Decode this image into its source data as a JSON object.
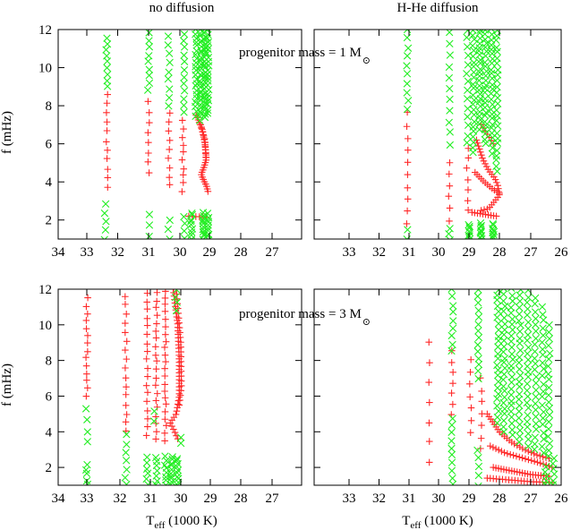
{
  "colors": {
    "stable": "#ff2a2a",
    "unstable": "#22ee22",
    "axis": "#000000"
  },
  "panel_titles": [
    "no diffusion",
    "H-He diffusion"
  ],
  "ylabel": "f (mHz)",
  "xlabel": {
    "main": "T",
    "sub": "eff",
    "rest": " (1000 K)"
  },
  "annotations": {
    "top": {
      "text": "progenitor mass = 1  M",
      "symbol": "⊙"
    },
    "bottom": {
      "text": "progenitor mass = 3  M",
      "symbol": "⊙"
    }
  },
  "chart_data": [
    {
      "type": "scatter",
      "panel": "top-left",
      "title": "no diffusion",
      "xlim": [
        34,
        26
      ],
      "ylim": [
        1,
        12
      ],
      "xticks": [
        34,
        33,
        32,
        31,
        30,
        29,
        28,
        27
      ],
      "yticks": [
        2,
        4,
        6,
        8,
        10,
        12
      ],
      "series": [
        {
          "marker": "plus",
          "columns": [
            {
              "x": 32.35,
              "ymin": 3.7,
              "ymax": 8.6,
              "n": 11
            },
            {
              "x": 31.0,
              "ymin": 4.5,
              "ymax": 8.2,
              "n": 8
            },
            {
              "x": 30.35,
              "ymin": 3.8,
              "ymax": 7.6,
              "n": 9
            },
            {
              "x": 29.9,
              "ymin": 3.5,
              "ymax": 7.2,
              "n": 10
            }
          ],
          "curves": [
            {
              "points": [
                [
                  29.45,
                  7.5
                ],
                [
                  29.25,
                  6.8
                ],
                [
                  29.15,
                  6.0
                ],
                [
                  29.1,
                  5.2
                ],
                [
                  29.2,
                  4.7
                ],
                [
                  29.28,
                  4.4
                ],
                [
                  29.2,
                  4.1
                ],
                [
                  29.1,
                  3.8
                ],
                [
                  29.05,
                  3.5
                ]
              ],
              "n": 32
            },
            {
              "points": [
                [
                  29.3,
                  7.0
                ],
                [
                  29.15,
                  6.2
                ],
                [
                  29.12,
                  5.3
                ]
              ],
              "n": 10
            },
            {
              "points": [
                [
                  29.7,
                  2.2
                ],
                [
                  29.1,
                  2.15
                ]
              ],
              "n": 6
            }
          ]
        },
        {
          "marker": "x",
          "columns": [
            {
              "x": 32.35,
              "ymin": 9.0,
              "ymax": 11.6,
              "n": 9
            },
            {
              "x": 32.4,
              "ymin": 1.0,
              "ymax": 2.8,
              "n": 5
            },
            {
              "x": 31.0,
              "ymin": 8.8,
              "ymax": 11.8,
              "n": 9
            },
            {
              "x": 31.0,
              "ymin": 1.1,
              "ymax": 2.3,
              "n": 3
            },
            {
              "x": 30.35,
              "ymin": 8.0,
              "ymax": 11.6,
              "n": 9
            },
            {
              "x": 30.35,
              "ymin": 1.0,
              "ymax": 2.0,
              "n": 3
            },
            {
              "x": 29.85,
              "ymin": 7.6,
              "ymax": 11.8,
              "n": 12
            },
            {
              "x": 29.85,
              "ymin": 1.0,
              "ymax": 2.2,
              "n": 4
            },
            {
              "x": 29.45,
              "ymin": 7.5,
              "ymax": 12.0,
              "n": 22
            },
            {
              "x": 29.3,
              "ymin": 7.2,
              "ymax": 12.0,
              "n": 28
            },
            {
              "x": 29.15,
              "ymin": 7.4,
              "ymax": 12.0,
              "n": 26
            },
            {
              "x": 29.05,
              "ymin": 7.6,
              "ymax": 12.0,
              "n": 22
            },
            {
              "x": 29.6,
              "ymin": 1.0,
              "ymax": 2.4,
              "n": 9
            },
            {
              "x": 29.2,
              "ymin": 1.0,
              "ymax": 2.4,
              "n": 12
            },
            {
              "x": 29.05,
              "ymin": 1.0,
              "ymax": 2.3,
              "n": 10
            }
          ]
        }
      ]
    },
    {
      "type": "scatter",
      "panel": "top-right",
      "title": "H-He diffusion",
      "xlim": [
        34,
        26
      ],
      "ylim": [
        1,
        12
      ],
      "xticks": [
        33,
        32,
        31,
        30,
        29,
        28,
        27,
        26
      ],
      "yticks": [
        2,
        4,
        6,
        8,
        10,
        12
      ],
      "series": [
        {
          "marker": "plus",
          "columns": [
            {
              "x": 31.05,
              "ymin": 1.8,
              "ymax": 7.6,
              "n": 10
            },
            {
              "x": 29.65,
              "ymin": 2.0,
              "ymax": 5.0,
              "n": 6
            },
            {
              "x": 29.05,
              "ymin": 2.5,
              "ymax": 5.8,
              "n": 7
            }
          ],
          "curves": [
            {
              "points": [
                [
                  28.75,
                  6.2
                ],
                [
                  28.55,
                  5.2
                ],
                [
                  28.35,
                  4.6
                ],
                [
                  28.15,
                  4.2
                ],
                [
                  28.05,
                  3.8
                ],
                [
                  28.0,
                  3.3
                ],
                [
                  28.15,
                  3.0
                ],
                [
                  28.35,
                  2.6
                ],
                [
                  28.6,
                  2.5
                ]
              ],
              "n": 28
            },
            {
              "points": [
                [
                  28.8,
                  4.5
                ],
                [
                  28.5,
                  4.0
                ],
                [
                  28.2,
                  3.6
                ],
                [
                  28.0,
                  3.4
                ]
              ],
              "n": 12
            },
            {
              "points": [
                [
                  28.9,
                  2.4
                ],
                [
                  28.5,
                  2.3
                ],
                [
                  28.1,
                  2.2
                ]
              ],
              "n": 10
            },
            {
              "points": [
                [
                  28.6,
                  7.0
                ],
                [
                  28.4,
                  6.5
                ],
                [
                  28.2,
                  6.0
                ]
              ],
              "n": 7
            }
          ]
        },
        {
          "marker": "x",
          "columns": [
            {
              "x": 31.05,
              "ymin": 7.8,
              "ymax": 12.0,
              "n": 10
            },
            {
              "x": 31.05,
              "ymin": 1.0,
              "ymax": 1.5,
              "n": 2
            },
            {
              "x": 29.65,
              "ymin": 6.0,
              "ymax": 11.8,
              "n": 11
            },
            {
              "x": 29.65,
              "ymin": 1.0,
              "ymax": 1.6,
              "n": 3
            },
            {
              "x": 29.05,
              "ymin": 6.0,
              "ymax": 12.0,
              "n": 14
            },
            {
              "x": 28.85,
              "ymin": 5.5,
              "ymax": 12.0,
              "n": 24
            },
            {
              "x": 28.65,
              "ymin": 6.8,
              "ymax": 12.0,
              "n": 24
            },
            {
              "x": 28.45,
              "ymin": 6.0,
              "ymax": 12.0,
              "n": 26
            },
            {
              "x": 28.25,
              "ymin": 5.5,
              "ymax": 12.0,
              "n": 26
            },
            {
              "x": 28.08,
              "ymin": 4.5,
              "ymax": 12.0,
              "n": 26
            },
            {
              "x": 29.0,
              "ymin": 1.0,
              "ymax": 1.8,
              "n": 8
            },
            {
              "x": 28.6,
              "ymin": 1.0,
              "ymax": 1.8,
              "n": 9
            },
            {
              "x": 28.2,
              "ymin": 1.0,
              "ymax": 1.8,
              "n": 9
            }
          ]
        }
      ]
    },
    {
      "type": "scatter",
      "panel": "bottom-left",
      "title": "",
      "xlim": [
        34,
        26
      ],
      "ylim": [
        1,
        12
      ],
      "xticks": [
        34,
        33,
        32,
        31,
        30,
        29,
        28,
        27
      ],
      "yticks": [
        2,
        4,
        6,
        8,
        10,
        12
      ],
      "series": [
        {
          "marker": "plus",
          "columns": [
            {
              "x": 33.0,
              "ymin": 6.0,
              "ymax": 11.5,
              "n": 14
            },
            {
              "x": 31.8,
              "ymin": 4.0,
              "ymax": 11.6,
              "n": 16
            },
            {
              "x": 31.1,
              "ymin": 3.8,
              "ymax": 11.8,
              "n": 18
            },
            {
              "x": 30.8,
              "ymin": 3.6,
              "ymax": 11.8,
              "n": 20
            },
            {
              "x": 30.5,
              "ymin": 3.5,
              "ymax": 11.9,
              "n": 22
            }
          ],
          "curves": [
            {
              "points": [
                [
                  30.25,
                  12.0
                ],
                [
                  30.1,
                  10.0
                ],
                [
                  30.05,
                  8.0
                ],
                [
                  30.05,
                  6.0
                ],
                [
                  30.15,
                  5.0
                ],
                [
                  30.35,
                  4.5
                ],
                [
                  30.2,
                  4.0
                ],
                [
                  30.1,
                  3.6
                ]
              ],
              "n": 45
            },
            {
              "points": [
                [
                  30.15,
                  12.0
                ],
                [
                  30.0,
                  9.0
                ],
                [
                  29.98,
                  6.5
                ],
                [
                  30.05,
                  5.5
                ]
              ],
              "n": 25
            }
          ]
        },
        {
          "marker": "x",
          "columns": [
            {
              "x": 33.0,
              "ymin": 3.4,
              "ymax": 5.3,
              "n": 4
            },
            {
              "x": 33.0,
              "ymin": 1.0,
              "ymax": 2.2,
              "n": 5
            },
            {
              "x": 31.8,
              "ymin": 1.0,
              "ymax": 3.8,
              "n": 7
            },
            {
              "x": 31.1,
              "ymin": 1.0,
              "ymax": 2.6,
              "n": 6
            },
            {
              "x": 30.85,
              "ymin": 4.6,
              "ymax": 5.2,
              "n": 2
            },
            {
              "x": 30.8,
              "ymin": 1.0,
              "ymax": 2.6,
              "n": 7
            },
            {
              "x": 30.5,
              "ymin": 1.0,
              "ymax": 2.6,
              "n": 8
            },
            {
              "x": 30.3,
              "ymin": 1.0,
              "ymax": 2.6,
              "n": 10
            },
            {
              "x": 30.1,
              "ymin": 1.0,
              "ymax": 2.5,
              "n": 10
            },
            {
              "x": 30.0,
              "ymin": 3.4,
              "ymax": 3.7,
              "n": 2
            },
            {
              "x": 30.15,
              "ymin": 10.8,
              "ymax": 12.0,
              "n": 4
            }
          ]
        }
      ]
    },
    {
      "type": "scatter",
      "panel": "bottom-right",
      "title": "",
      "xlim": [
        34,
        26
      ],
      "ylim": [
        1,
        12
      ],
      "xticks": [
        33,
        32,
        31,
        30,
        29,
        28,
        27,
        26
      ],
      "yticks": [
        2,
        4,
        6,
        8,
        10,
        12
      ],
      "series": [
        {
          "marker": "plus",
          "columns": [
            {
              "x": 30.3,
              "ymin": 2.3,
              "ymax": 9.0,
              "n": 7
            },
            {
              "x": 29.55,
              "ymin": 5.0,
              "ymax": 8.5,
              "n": 7
            },
            {
              "x": 28.95,
              "ymin": 4.0,
              "ymax": 8.0,
              "n": 7
            },
            {
              "x": 28.6,
              "ymin": 3.0,
              "ymax": 7.0,
              "n": 7
            }
          ],
          "curves": [
            {
              "points": [
                [
                  28.4,
                  5.0
                ],
                [
                  28.0,
                  4.0
                ],
                [
                  27.6,
                  3.4
                ],
                [
                  27.2,
                  3.0
                ],
                [
                  26.8,
                  2.7
                ],
                [
                  26.4,
                  2.5
                ]
              ],
              "n": 26
            },
            {
              "points": [
                [
                  28.3,
                  3.2
                ],
                [
                  27.8,
                  2.8
                ],
                [
                  27.2,
                  2.5
                ],
                [
                  26.6,
                  2.2
                ],
                [
                  26.3,
                  2.0
                ]
              ],
              "n": 22
            },
            {
              "points": [
                [
                  28.2,
                  2.0
                ],
                [
                  27.6,
                  1.8
                ],
                [
                  27.0,
                  1.6
                ],
                [
                  26.4,
                  1.5
                ]
              ],
              "n": 22
            },
            {
              "points": [
                [
                  28.4,
                  1.4
                ],
                [
                  27.7,
                  1.3
                ],
                [
                  27.0,
                  1.2
                ],
                [
                  26.3,
                  1.15
                ]
              ],
              "n": 22
            }
          ]
        },
        {
          "marker": "x",
          "columns": [
            {
              "x": 29.55,
              "ymin": 8.5,
              "ymax": 12.0,
              "n": 9
            },
            {
              "x": 29.55,
              "ymin": 1.0,
              "ymax": 4.8,
              "n": 10
            },
            {
              "x": 28.7,
              "ymin": 7.0,
              "ymax": 12.0,
              "n": 14
            },
            {
              "x": 28.7,
              "ymin": 1.0,
              "ymax": 3.0,
              "n": 5
            },
            {
              "x": 28.05,
              "ymin": 4.5,
              "ymax": 12.0,
              "n": 24
            },
            {
              "x": 27.85,
              "ymin": 4.0,
              "ymax": 12.0,
              "n": 26
            },
            {
              "x": 27.6,
              "ymin": 3.8,
              "ymax": 12.0,
              "n": 26
            },
            {
              "x": 27.35,
              "ymin": 3.4,
              "ymax": 12.0,
              "n": 26
            },
            {
              "x": 27.1,
              "ymin": 3.2,
              "ymax": 11.9,
              "n": 26
            },
            {
              "x": 26.85,
              "ymin": 3.0,
              "ymax": 11.5,
              "n": 24
            },
            {
              "x": 26.6,
              "ymin": 2.8,
              "ymax": 11.0,
              "n": 22
            },
            {
              "x": 26.4,
              "ymin": 2.6,
              "ymax": 10.0,
              "n": 20
            },
            {
              "x": 26.25,
              "ymin": 1.0,
              "ymax": 2.5,
              "n": 6
            },
            {
              "x": 26.5,
              "ymin": 1.0,
              "ymax": 2.0,
              "n": 5
            }
          ]
        }
      ]
    }
  ]
}
